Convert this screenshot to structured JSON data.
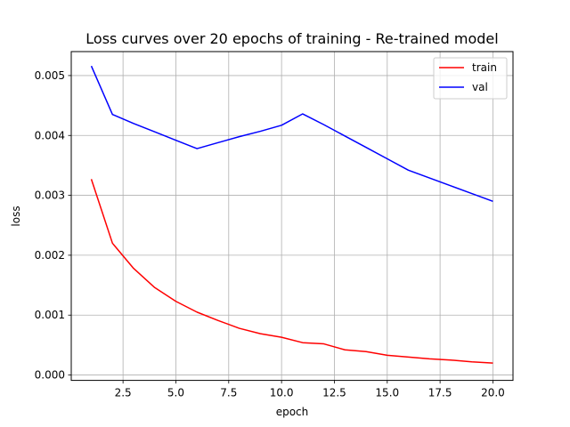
{
  "chart_data": {
    "type": "line",
    "title": "Loss curves over 20 epochs of training - Re-trained model",
    "xlabel": "epoch",
    "ylabel": "loss",
    "xlim": [
      0.05,
      20.95
    ],
    "ylim": [
      -8.97e-05,
      0.0054
    ],
    "x_ticks": [
      2.5,
      5.0,
      7.5,
      10.0,
      12.5,
      15.0,
      17.5,
      20.0
    ],
    "x_tick_labels": [
      "2.5",
      "5.0",
      "7.5",
      "10.0",
      "12.5",
      "15.0",
      "17.5",
      "20.0"
    ],
    "y_ticks": [
      0.0,
      0.001,
      0.002,
      0.003,
      0.004,
      0.005
    ],
    "y_tick_labels": [
      "0.000",
      "0.001",
      "0.002",
      "0.003",
      "0.004",
      "0.005"
    ],
    "grid": true,
    "legend_position": "top-right",
    "x": [
      1,
      2,
      3,
      4,
      5,
      6,
      7,
      8,
      9,
      10,
      11,
      12,
      13,
      14,
      15,
      16,
      17,
      18,
      19,
      20
    ],
    "series": [
      {
        "name": "train",
        "color": "#ff0000",
        "values": [
          0.00327,
          0.0022,
          0.00178,
          0.00146,
          0.00123,
          0.00105,
          0.00091,
          0.00078,
          0.00069,
          0.00063,
          0.00054,
          0.00052,
          0.00042,
          0.00039,
          0.00033,
          0.0003,
          0.00027,
          0.00025,
          0.00022,
          0.0002
        ]
      },
      {
        "name": "val",
        "color": "#0000ff",
        "values": [
          0.00516,
          0.00435,
          0.0042,
          0.00406,
          0.00392,
          0.00378,
          0.00388,
          0.00398,
          0.00407,
          0.00417,
          0.00436,
          0.00418,
          0.00399,
          0.0038,
          0.00361,
          0.00342,
          0.00329,
          0.00316,
          0.00303,
          0.0029
        ]
      }
    ]
  }
}
